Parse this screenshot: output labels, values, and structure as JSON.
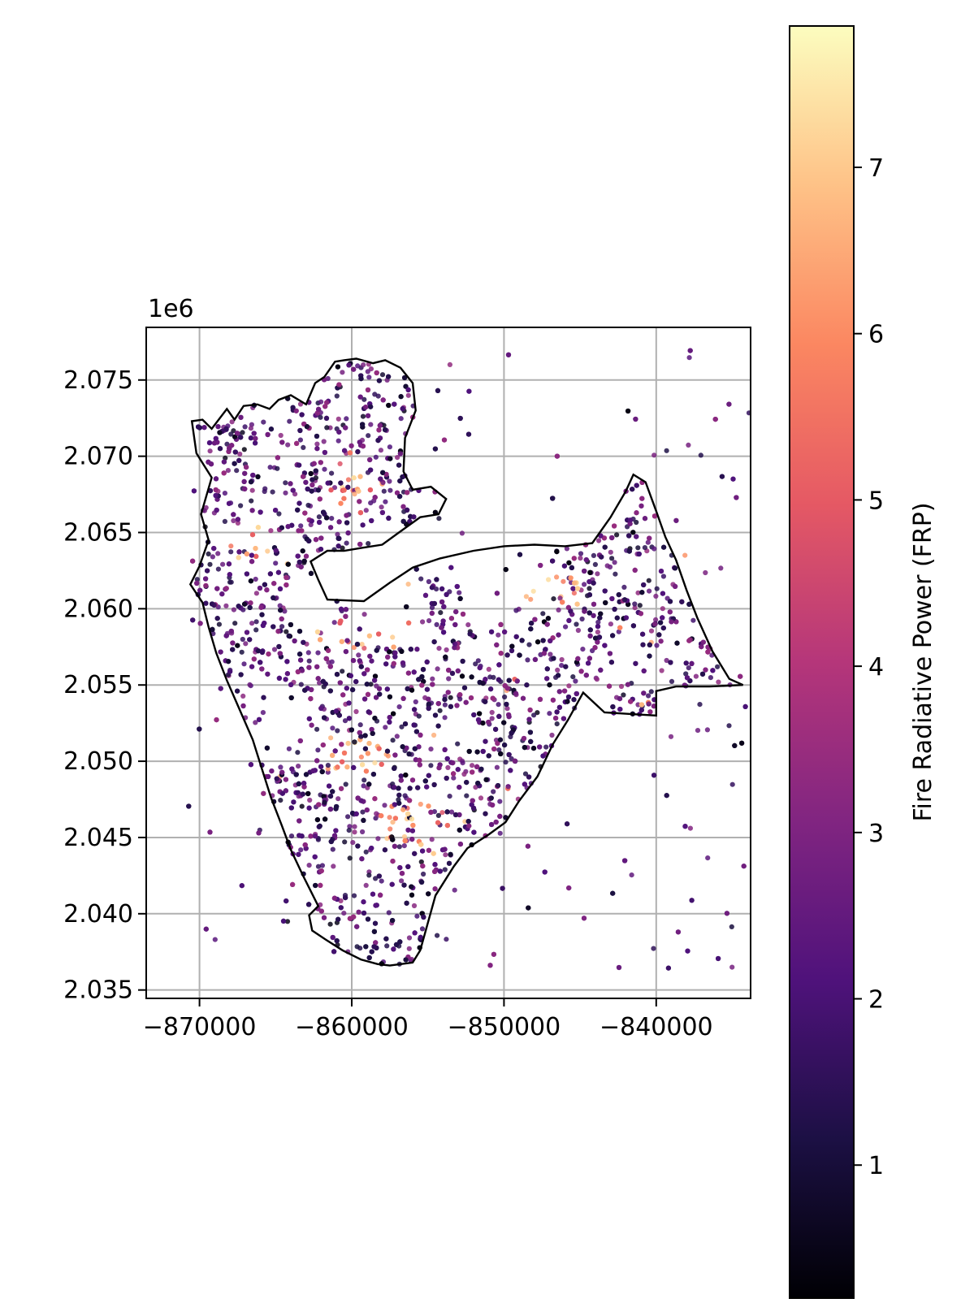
{
  "chart_data": {
    "type": "scatter",
    "title": "",
    "xlabel": "",
    "ylabel": "",
    "offset_label": "1e6",
    "xlim": [
      -873500,
      -833800
    ],
    "ylim": [
      2.03445,
      2.07845
    ],
    "xticks": [
      -870000,
      -860000,
      -850000,
      -840000
    ],
    "xtick_labels": [
      "−870000",
      "−860000",
      "−850000",
      "−840000"
    ],
    "yticks": [
      2.035,
      2.04,
      2.045,
      2.05,
      2.055,
      2.06,
      2.065,
      2.07,
      2.075
    ],
    "ytick_labels": [
      "2.035",
      "2.040",
      "2.045",
      "2.050",
      "2.055",
      "2.060",
      "2.065",
      "2.070",
      "2.075"
    ],
    "grid": true,
    "colormap": "magma",
    "colorbar": {
      "label": "Fire Radiative Power (FRP)",
      "range": [
        0.2,
        7.85
      ],
      "ticks": [
        1,
        2,
        3,
        4,
        5,
        6,
        7
      ],
      "tick_labels": [
        "1",
        "2",
        "3",
        "4",
        "5",
        "6",
        "7"
      ]
    },
    "boundary": [
      [
        -870500,
        2.0723
      ],
      [
        -869800,
        2.0724
      ],
      [
        -869200,
        2.0718
      ],
      [
        -868200,
        2.0731
      ],
      [
        -867700,
        2.0724
      ],
      [
        -867100,
        2.0733
      ],
      [
        -866200,
        2.0734
      ],
      [
        -865400,
        2.0731
      ],
      [
        -864800,
        2.0737
      ],
      [
        -864000,
        2.074
      ],
      [
        -863000,
        2.0734
      ],
      [
        -862400,
        2.0748
      ],
      [
        -861800,
        2.0752
      ],
      [
        -861100,
        2.0762
      ],
      [
        -860500,
        2.0763
      ],
      [
        -859700,
        2.0764
      ],
      [
        -858600,
        2.0761
      ],
      [
        -857800,
        2.0763
      ],
      [
        -856800,
        2.0758
      ],
      [
        -856000,
        2.0748
      ],
      [
        -855800,
        2.073
      ],
      [
        -856500,
        2.0712
      ],
      [
        -856600,
        2.069
      ],
      [
        -856000,
        2.0678
      ],
      [
        -854800,
        2.068
      ],
      [
        -853800,
        2.0672
      ],
      [
        -854300,
        2.0662
      ],
      [
        -855500,
        2.066
      ],
      [
        -856900,
        2.065
      ],
      [
        -858000,
        2.0642
      ],
      [
        -859300,
        2.064
      ],
      [
        -860500,
        2.0638
      ],
      [
        -861600,
        2.0638
      ],
      [
        -862700,
        2.0631
      ],
      [
        -862200,
        2.0619
      ],
      [
        -861600,
        2.0606
      ],
      [
        -859200,
        2.0605
      ],
      [
        -857500,
        2.0617
      ],
      [
        -856000,
        2.0627
      ],
      [
        -854200,
        2.0633
      ],
      [
        -852000,
        2.0638
      ],
      [
        -850000,
        2.0641
      ],
      [
        -848000,
        2.0642
      ],
      [
        -846000,
        2.0641
      ],
      [
        -844200,
        2.0643
      ],
      [
        -843000,
        2.066
      ],
      [
        -842000,
        2.0677
      ],
      [
        -841500,
        2.0688
      ],
      [
        -840700,
        2.0683
      ],
      [
        -840000,
        2.0664
      ],
      [
        -839400,
        2.0647
      ],
      [
        -838700,
        2.0632
      ],
      [
        -838000,
        2.0612
      ],
      [
        -837300,
        2.0594
      ],
      [
        -836300,
        2.0572
      ],
      [
        -835200,
        2.0554
      ],
      [
        -834300,
        2.055
      ],
      [
        -836500,
        2.0549
      ],
      [
        -838700,
        2.0549
      ],
      [
        -840000,
        2.0546
      ],
      [
        -840000,
        2.053
      ],
      [
        -841700,
        2.0531
      ],
      [
        -843400,
        2.0532
      ],
      [
        -844800,
        2.0545
      ],
      [
        -845800,
        2.0527
      ],
      [
        -846800,
        2.0511
      ],
      [
        -847800,
        2.049
      ],
      [
        -849000,
        2.0474
      ],
      [
        -849900,
        2.046
      ],
      [
        -851000,
        2.0452
      ],
      [
        -852400,
        2.0443
      ],
      [
        -853300,
        2.0431
      ],
      [
        -854500,
        2.0412
      ],
      [
        -855000,
        2.0394
      ],
      [
        -855500,
        2.0376
      ],
      [
        -856000,
        2.0368
      ],
      [
        -857500,
        2.0366
      ],
      [
        -858300,
        2.0367
      ],
      [
        -859400,
        2.037
      ],
      [
        -860600,
        2.0376
      ],
      [
        -861700,
        2.0383
      ],
      [
        -862600,
        2.0389
      ],
      [
        -862800,
        2.0399
      ],
      [
        -862200,
        2.0405
      ],
      [
        -863200,
        2.0425
      ],
      [
        -864000,
        2.0442
      ],
      [
        -864600,
        2.0458
      ],
      [
        -865300,
        2.0476
      ],
      [
        -866000,
        2.0498
      ],
      [
        -866500,
        2.0514
      ],
      [
        -867500,
        2.0537
      ],
      [
        -868200,
        2.0553
      ],
      [
        -868900,
        2.0571
      ],
      [
        -869400,
        2.0588
      ],
      [
        -869800,
        2.0604
      ],
      [
        -870600,
        2.0616
      ],
      [
        -870000,
        2.0628
      ],
      [
        -869400,
        2.0645
      ],
      [
        -869900,
        2.0662
      ],
      [
        -869200,
        2.0686
      ],
      [
        -870200,
        2.0702
      ],
      [
        -870500,
        2.0723
      ]
    ],
    "points_summary": "dense scatter of FRP detections; values range approximately 0.3 to 7.8, mostly 1.5–3.5 (purple) with clusters of 5–7 (salmon/orange) near (-860000, 2.068) and (-848000, 2.061)"
  }
}
